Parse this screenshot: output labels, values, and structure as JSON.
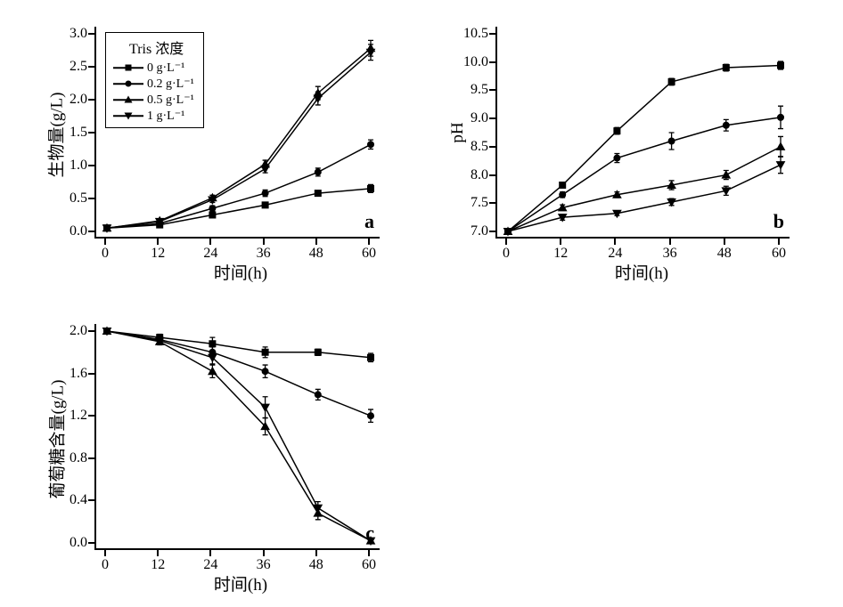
{
  "legend": {
    "title": "Tris 浓度",
    "items": [
      {
        "label": "0 g·L⁻¹",
        "marker": "square"
      },
      {
        "label": "0.2 g·L⁻¹",
        "marker": "circle"
      },
      {
        "label": "0.5 g·L⁻¹",
        "marker": "triangle-up"
      },
      {
        "label": "1 g·L⁻¹",
        "marker": "triangle-down"
      }
    ]
  },
  "series_markers": [
    "square",
    "circle",
    "triangle-up",
    "triangle-down"
  ],
  "line_color": "#000000",
  "marker_fill": "#000000",
  "line_width": 1.5,
  "marker_size": 7,
  "error_cap_width": 6,
  "panel_a": {
    "label": "a",
    "xlabel": "时间(h)",
    "ylabel": "生物量(g/L)",
    "xlim": [
      0,
      60
    ],
    "ylim": [
      0,
      3
    ],
    "xticks": [
      0,
      12,
      24,
      36,
      48,
      60
    ],
    "yticks": [
      0.0,
      0.5,
      1.0,
      1.5,
      2.0,
      2.5,
      3.0
    ],
    "x": [
      0,
      12,
      24,
      36,
      48,
      60
    ],
    "series": [
      {
        "y": [
          0.05,
          0.1,
          0.25,
          0.4,
          0.58,
          0.65
        ],
        "err": [
          0.02,
          0.02,
          0.03,
          0.03,
          0.04,
          0.06
        ]
      },
      {
        "y": [
          0.05,
          0.12,
          0.35,
          0.58,
          0.9,
          1.32
        ],
        "err": [
          0.02,
          0.02,
          0.04,
          0.05,
          0.06,
          0.07
        ]
      },
      {
        "y": [
          0.05,
          0.16,
          0.51,
          1.02,
          2.1,
          2.78
        ],
        "err": [
          0.02,
          0.03,
          0.04,
          0.06,
          0.1,
          0.12
        ]
      },
      {
        "y": [
          0.05,
          0.15,
          0.48,
          0.95,
          2.02,
          2.72
        ],
        "err": [
          0.02,
          0.03,
          0.04,
          0.06,
          0.1,
          0.12
        ]
      }
    ]
  },
  "panel_b": {
    "label": "b",
    "xlabel": "时间(h)",
    "ylabel": "pH",
    "xlim": [
      0,
      60
    ],
    "ylim": [
      7.0,
      10.5
    ],
    "xticks": [
      0,
      12,
      24,
      36,
      48,
      60
    ],
    "yticks": [
      7.0,
      7.5,
      8.0,
      8.5,
      9.0,
      9.5,
      10.0,
      10.5
    ],
    "x": [
      0,
      12,
      24,
      36,
      48,
      60
    ],
    "series": [
      {
        "y": [
          7.0,
          7.82,
          8.78,
          9.65,
          9.9,
          9.94
        ],
        "err": [
          0.0,
          0.05,
          0.06,
          0.06,
          0.06,
          0.07
        ]
      },
      {
        "y": [
          7.0,
          7.65,
          8.3,
          8.6,
          8.88,
          9.02
        ],
        "err": [
          0.0,
          0.05,
          0.08,
          0.15,
          0.1,
          0.2
        ]
      },
      {
        "y": [
          7.0,
          7.42,
          7.65,
          7.82,
          8.0,
          8.5
        ],
        "err": [
          0.0,
          0.05,
          0.05,
          0.08,
          0.08,
          0.18
        ]
      },
      {
        "y": [
          7.0,
          7.25,
          7.32,
          7.52,
          7.72,
          8.18
        ],
        "err": [
          0.0,
          0.05,
          0.04,
          0.06,
          0.08,
          0.15
        ]
      }
    ]
  },
  "panel_c": {
    "label": "c",
    "xlabel": "时间(h)",
    "ylabel": "葡萄糖含量(g/L)",
    "xlim": [
      0,
      60
    ],
    "ylim": [
      0,
      2
    ],
    "xticks": [
      0,
      12,
      24,
      36,
      48,
      60
    ],
    "yticks": [
      0.0,
      0.4,
      0.8,
      1.2,
      1.6,
      2.0
    ],
    "x": [
      0,
      12,
      24,
      36,
      48,
      60
    ],
    "series": [
      {
        "y": [
          2.0,
          1.94,
          1.88,
          1.8,
          1.8,
          1.75
        ],
        "err": [
          0.02,
          0.03,
          0.06,
          0.05,
          0.03,
          0.04
        ]
      },
      {
        "y": [
          2.0,
          1.92,
          1.8,
          1.62,
          1.4,
          1.2
        ],
        "err": [
          0.02,
          0.03,
          0.05,
          0.06,
          0.05,
          0.06
        ]
      },
      {
        "y": [
          2.0,
          1.9,
          1.62,
          1.1,
          0.28,
          0.02
        ],
        "err": [
          0.02,
          0.03,
          0.06,
          0.08,
          0.06,
          0.02
        ]
      },
      {
        "y": [
          2.0,
          1.91,
          1.75,
          1.28,
          0.33,
          0.02
        ],
        "err": [
          0.02,
          0.03,
          0.06,
          0.1,
          0.06,
          0.02
        ]
      }
    ]
  }
}
